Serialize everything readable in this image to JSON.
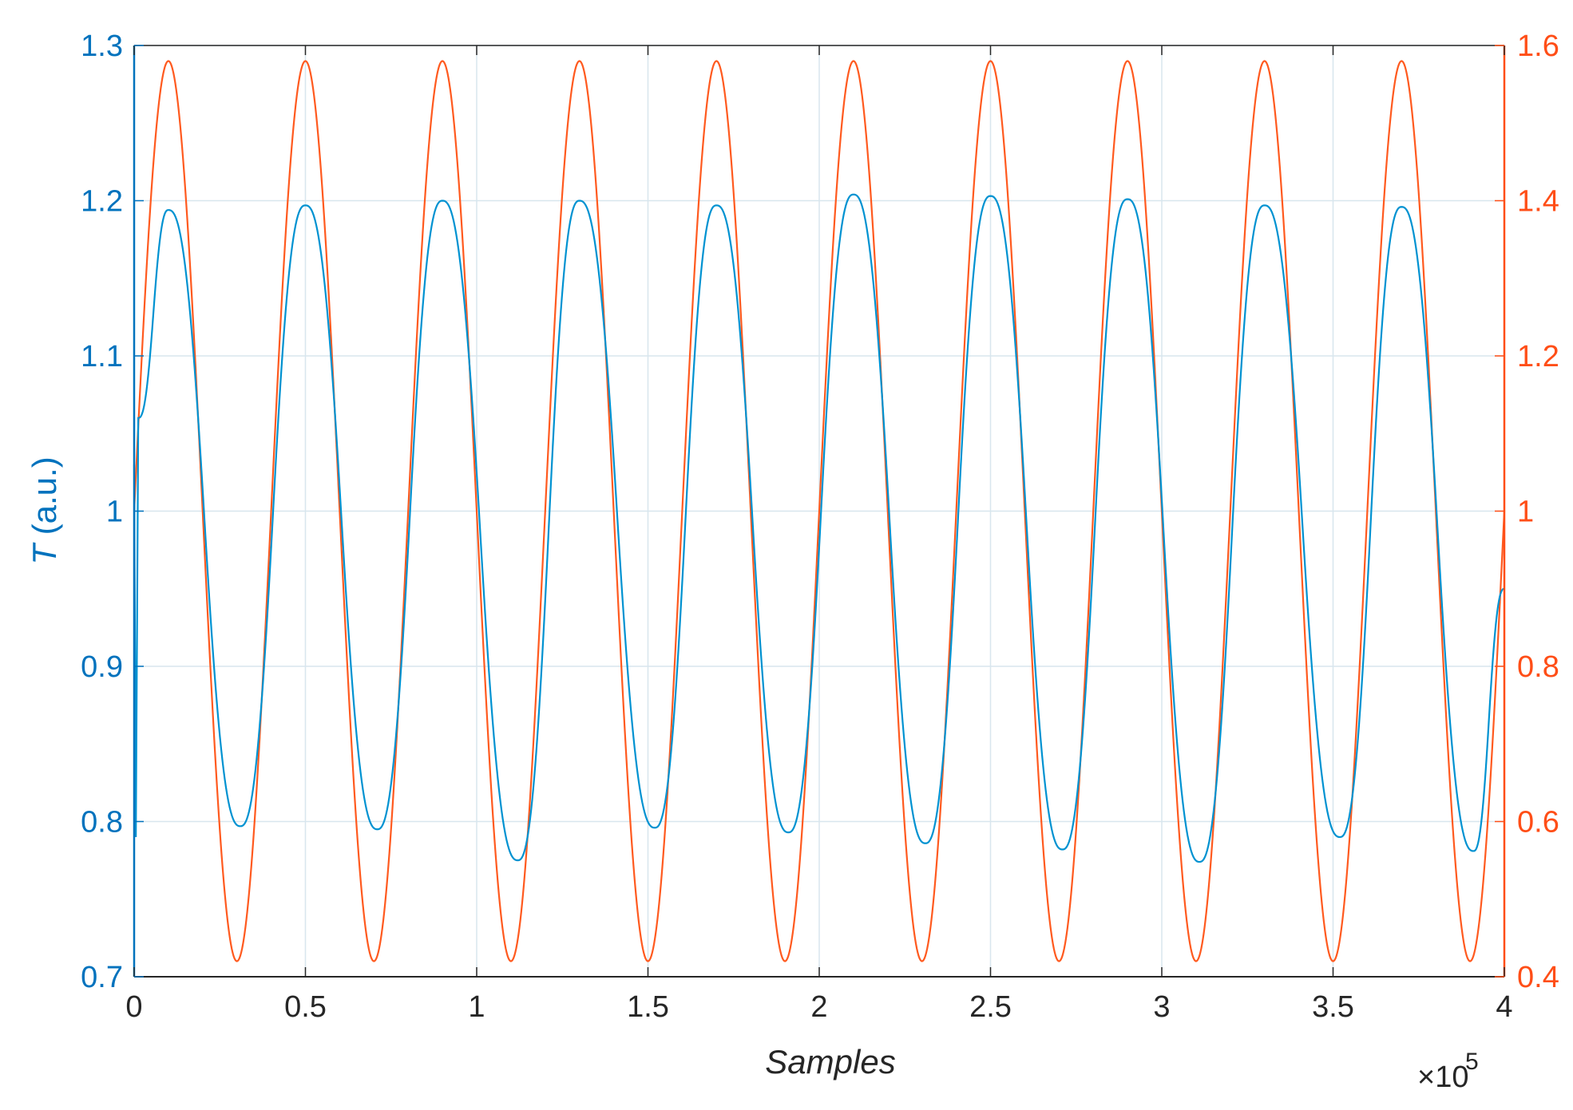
{
  "chart_data": {
    "type": "line",
    "title": "",
    "xlabel": "Samples",
    "x_exponent_label": "×10",
    "x_exponent_power": "5",
    "ylabel_left_symbol": "T",
    "ylabel_left_unit": " (a.u.)",
    "ylabel_right": "",
    "xlim": [
      0,
      4
    ],
    "ylim_left": [
      0.7,
      1.3
    ],
    "ylim_right": [
      0.4,
      1.6
    ],
    "x_ticks": [
      "0",
      "0.5",
      "1",
      "1.5",
      "2",
      "2.5",
      "3",
      "3.5",
      "4"
    ],
    "y_left_ticks": [
      "0.7",
      "0.8",
      "0.9",
      "1",
      "1.1",
      "1.2",
      "1.3"
    ],
    "y_right_ticks": [
      "0.4",
      "0.6",
      "0.8",
      "1",
      "1.2",
      "1.4",
      "1.6"
    ],
    "grid": true,
    "colors": {
      "left_axis": "#0072BD",
      "right_axis": "#FF4E17",
      "series_left": "#0092D1",
      "series_right": "#FF5A1F",
      "grid": "#d8e6ee"
    },
    "series": [
      {
        "axis": "left",
        "peaks": [
          {
            "x": 0.1,
            "y": 1.194
          },
          {
            "x": 0.5,
            "y": 1.197
          },
          {
            "x": 0.9,
            "y": 1.2
          },
          {
            "x": 1.3,
            "y": 1.2
          },
          {
            "x": 1.7,
            "y": 1.197
          },
          {
            "x": 2.1,
            "y": 1.204
          },
          {
            "x": 2.5,
            "y": 1.203
          },
          {
            "x": 2.9,
            "y": 1.201
          },
          {
            "x": 3.3,
            "y": 1.197
          },
          {
            "x": 3.7,
            "y": 1.196
          }
        ],
        "troughs": [
          {
            "x": 0.31,
            "y": 0.797
          },
          {
            "x": 0.71,
            "y": 0.795
          },
          {
            "x": 1.12,
            "y": 0.775
          },
          {
            "x": 1.52,
            "y": 0.796
          },
          {
            "x": 1.91,
            "y": 0.793
          },
          {
            "x": 2.31,
            "y": 0.786
          },
          {
            "x": 2.71,
            "y": 0.782
          },
          {
            "x": 3.11,
            "y": 0.774
          },
          {
            "x": 3.52,
            "y": 0.79
          },
          {
            "x": 3.91,
            "y": 0.781
          }
        ],
        "start": [
          {
            "x": 0.0,
            "y": 1.03
          },
          {
            "x": 0.005,
            "y": 0.79
          },
          {
            "x": 0.012,
            "y": 1.06
          }
        ],
        "end": {
          "x": 4.0,
          "y": 0.95
        }
      },
      {
        "axis": "right",
        "amplitude": 0.58,
        "offset": 1.0,
        "period": 0.4,
        "first_peak_x": 0.1,
        "peak_value": 1.58,
        "trough_value": 0.42
      }
    ]
  }
}
